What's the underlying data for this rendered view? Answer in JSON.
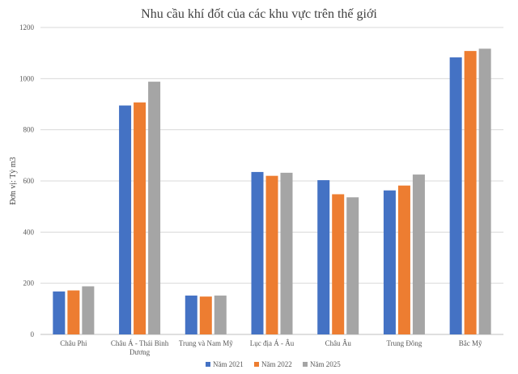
{
  "chart_data": {
    "type": "bar",
    "title": "Nhu cầu khí đốt của các khu vực trên thế giới",
    "xlabel": "",
    "ylabel": "Đơn vị: Tỷ m3",
    "ylim": [
      0,
      1200
    ],
    "yticks": [
      0,
      200,
      400,
      600,
      800,
      1000,
      1200
    ],
    "grid": true,
    "legend_position": "bottom",
    "categories": [
      "Châu Phi",
      "Châu Á - Thái Bình Dương",
      "Trung và Nam Mỹ",
      "Lục địa Á - Âu",
      "Châu Âu",
      "Trung Đông",
      "Bắc Mỹ"
    ],
    "series": [
      {
        "name": "Năm 2021",
        "color": "#4472c4",
        "values": [
          168,
          895,
          152,
          635,
          603,
          563,
          1083
        ]
      },
      {
        "name": "Năm 2022",
        "color": "#ed7d31",
        "values": [
          172,
          907,
          148,
          620,
          548,
          582,
          1108
        ]
      },
      {
        "name": "Năm 2025",
        "color": "#a5a5a5",
        "values": [
          188,
          988,
          152,
          632,
          536,
          625,
          1117
        ]
      }
    ]
  }
}
